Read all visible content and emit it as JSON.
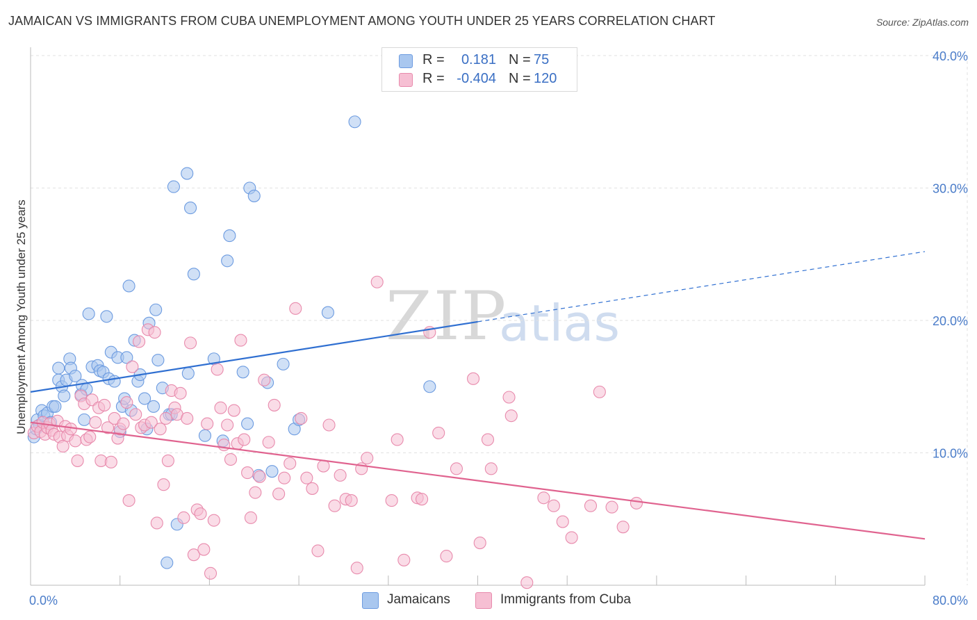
{
  "title": "JAMAICAN VS IMMIGRANTS FROM CUBA UNEMPLOYMENT AMONG YOUTH UNDER 25 YEARS CORRELATION CHART",
  "source": "Source: ZipAtlas.com",
  "watermark": {
    "zip": "ZIP",
    "atlas": "atlas"
  },
  "legend": {
    "rows": [
      {
        "r_label": "R =",
        "r_value": "0.181",
        "n_label": "N =",
        "n_value": "75",
        "color": "#a9c7ef",
        "border": "#6c9be0"
      },
      {
        "r_label": "R =",
        "r_value": "-0.404",
        "n_label": "N =",
        "n_value": "120",
        "color": "#f6bfd3",
        "border": "#e88aac"
      }
    ]
  },
  "bottom_legend": [
    {
      "label": "Jamaicans",
      "color": "#a9c7ef",
      "border": "#6c9be0"
    },
    {
      "label": "Immigrants from Cuba",
      "color": "#f6bfd3",
      "border": "#e88aac"
    }
  ],
  "chart_data": {
    "type": "scatter",
    "title": "JAMAICAN VS IMMIGRANTS FROM CUBA UNEMPLOYMENT AMONG YOUTH UNDER 25 YEARS CORRELATION CHART",
    "xlabel": "",
    "ylabel": "Unemployment Among Youth under 25 years",
    "xlim": [
      0,
      80
    ],
    "ylim": [
      0,
      40
    ],
    "x_ticks": [
      {
        "value": 0,
        "label": "0.0%"
      },
      {
        "value": 80,
        "label": "80.0%"
      }
    ],
    "y_ticks": [
      {
        "value": 10,
        "label": "10.0%"
      },
      {
        "value": 20,
        "label": "20.0%"
      },
      {
        "value": 30,
        "label": "30.0%"
      },
      {
        "value": 40,
        "label": "40.0%"
      }
    ],
    "grid": true,
    "series": [
      {
        "name": "Jamaicans",
        "color": "#6c9be0",
        "fill": "#a9c7ef",
        "trend_color": "#2f6fd1",
        "trend": {
          "x0": 0,
          "y0": 14.6,
          "x1": 40,
          "y1": 19.9,
          "dashed_to_x": 80,
          "dashed_to_y": 25.2
        },
        "points": [
          [
            0.3,
            11.2
          ],
          [
            0.5,
            11.8
          ],
          [
            0.6,
            12.5
          ],
          [
            0.8,
            12.1
          ],
          [
            1.0,
            13.2
          ],
          [
            1.2,
            12.8
          ],
          [
            1.5,
            13.0
          ],
          [
            1.8,
            12.3
          ],
          [
            2.0,
            13.5
          ],
          [
            2.2,
            13.5
          ],
          [
            2.5,
            15.5
          ],
          [
            2.5,
            16.4
          ],
          [
            2.8,
            15.0
          ],
          [
            3.0,
            14.3
          ],
          [
            3.2,
            15.5
          ],
          [
            3.5,
            17.1
          ],
          [
            3.6,
            16.4
          ],
          [
            4.0,
            15.8
          ],
          [
            4.5,
            14.4
          ],
          [
            4.6,
            15.1
          ],
          [
            4.8,
            12.5
          ],
          [
            5.0,
            14.8
          ],
          [
            5.2,
            20.5
          ],
          [
            5.5,
            16.5
          ],
          [
            6.0,
            16.6
          ],
          [
            6.2,
            16.2
          ],
          [
            6.5,
            16.1
          ],
          [
            6.8,
            20.3
          ],
          [
            7.0,
            15.6
          ],
          [
            7.2,
            17.6
          ],
          [
            7.5,
            15.4
          ],
          [
            7.8,
            17.2
          ],
          [
            8.0,
            11.6
          ],
          [
            8.2,
            13.5
          ],
          [
            8.4,
            14.1
          ],
          [
            8.6,
            17.2
          ],
          [
            8.8,
            22.6
          ],
          [
            9.0,
            13.2
          ],
          [
            9.3,
            18.5
          ],
          [
            9.6,
            15.4
          ],
          [
            9.8,
            15.9
          ],
          [
            10.2,
            14.1
          ],
          [
            10.4,
            11.8
          ],
          [
            10.6,
            19.8
          ],
          [
            11.0,
            13.5
          ],
          [
            11.2,
            20.8
          ],
          [
            11.4,
            17.0
          ],
          [
            11.8,
            14.9
          ],
          [
            12.2,
            1.7
          ],
          [
            12.4,
            12.9
          ],
          [
            12.6,
            12.9
          ],
          [
            12.8,
            30.1
          ],
          [
            13.1,
            4.6
          ],
          [
            14.0,
            31.1
          ],
          [
            14.1,
            16.0
          ],
          [
            14.3,
            28.5
          ],
          [
            14.6,
            23.5
          ],
          [
            15.6,
            11.3
          ],
          [
            16.4,
            17.1
          ],
          [
            17.2,
            10.9
          ],
          [
            17.6,
            24.5
          ],
          [
            17.8,
            26.4
          ],
          [
            19.0,
            16.1
          ],
          [
            19.4,
            12.2
          ],
          [
            19.6,
            30.0
          ],
          [
            20.0,
            29.4
          ],
          [
            20.4,
            8.3
          ],
          [
            21.2,
            15.3
          ],
          [
            21.6,
            8.6
          ],
          [
            22.6,
            16.7
          ],
          [
            23.6,
            11.8
          ],
          [
            24.0,
            12.5
          ],
          [
            26.6,
            20.6
          ],
          [
            29.0,
            35.0
          ],
          [
            35.7,
            15.0
          ]
        ]
      },
      {
        "name": "Immigrants from Cuba",
        "color": "#e88aac",
        "fill": "#f6bfd3",
        "trend_color": "#e0638f",
        "trend": {
          "x0": 0,
          "y0": 12.3,
          "x1": 80,
          "y1": 3.5
        },
        "points": [
          [
            0.3,
            11.5
          ],
          [
            0.6,
            12.0
          ],
          [
            0.9,
            11.6
          ],
          [
            1.1,
            12.3
          ],
          [
            1.3,
            11.4
          ],
          [
            1.5,
            11.9
          ],
          [
            1.7,
            12.2
          ],
          [
            1.9,
            11.7
          ],
          [
            2.1,
            11.4
          ],
          [
            2.4,
            12.4
          ],
          [
            2.6,
            11.2
          ],
          [
            2.9,
            10.5
          ],
          [
            3.1,
            12.0
          ],
          [
            3.3,
            11.3
          ],
          [
            3.6,
            11.8
          ],
          [
            4.0,
            10.9
          ],
          [
            4.2,
            9.4
          ],
          [
            4.5,
            14.3
          ],
          [
            4.8,
            13.7
          ],
          [
            5.0,
            11.0
          ],
          [
            5.3,
            11.2
          ],
          [
            5.5,
            14.0
          ],
          [
            5.8,
            12.3
          ],
          [
            6.1,
            13.4
          ],
          [
            6.3,
            9.4
          ],
          [
            6.6,
            13.6
          ],
          [
            6.9,
            11.9
          ],
          [
            7.2,
            9.3
          ],
          [
            7.5,
            12.6
          ],
          [
            7.8,
            11.1
          ],
          [
            8.0,
            11.8
          ],
          [
            8.3,
            12.2
          ],
          [
            8.6,
            13.8
          ],
          [
            8.8,
            6.4
          ],
          [
            9.1,
            16.5
          ],
          [
            9.4,
            12.9
          ],
          [
            9.7,
            18.4
          ],
          [
            9.9,
            11.9
          ],
          [
            10.2,
            12.1
          ],
          [
            10.5,
            19.3
          ],
          [
            10.8,
            12.3
          ],
          [
            11.1,
            19.1
          ],
          [
            11.3,
            4.7
          ],
          [
            11.6,
            11.8
          ],
          [
            11.9,
            7.6
          ],
          [
            12.1,
            12.6
          ],
          [
            12.3,
            9.4
          ],
          [
            12.6,
            14.7
          ],
          [
            12.9,
            13.4
          ],
          [
            13.1,
            12.9
          ],
          [
            13.4,
            14.5
          ],
          [
            13.7,
            5.1
          ],
          [
            14.0,
            12.6
          ],
          [
            14.3,
            18.3
          ],
          [
            14.6,
            2.3
          ],
          [
            14.9,
            5.7
          ],
          [
            15.2,
            5.4
          ],
          [
            15.5,
            2.7
          ],
          [
            15.8,
            12.2
          ],
          [
            16.1,
            0.9
          ],
          [
            16.4,
            4.9
          ],
          [
            16.7,
            16.3
          ],
          [
            17.0,
            13.4
          ],
          [
            17.3,
            10.6
          ],
          [
            17.6,
            12.1
          ],
          [
            17.9,
            9.5
          ],
          [
            18.2,
            13.2
          ],
          [
            18.5,
            10.7
          ],
          [
            18.8,
            18.5
          ],
          [
            19.1,
            11.0
          ],
          [
            19.4,
            8.5
          ],
          [
            19.7,
            5.1
          ],
          [
            20.1,
            7.0
          ],
          [
            20.5,
            8.2
          ],
          [
            20.9,
            15.5
          ],
          [
            21.3,
            10.8
          ],
          [
            21.8,
            13.6
          ],
          [
            22.2,
            6.9
          ],
          [
            22.7,
            8.1
          ],
          [
            23.2,
            9.2
          ],
          [
            23.7,
            20.9
          ],
          [
            24.2,
            12.6
          ],
          [
            24.7,
            8.1
          ],
          [
            25.2,
            7.3
          ],
          [
            25.7,
            2.6
          ],
          [
            26.2,
            9.0
          ],
          [
            26.7,
            12.1
          ],
          [
            27.2,
            6.0
          ],
          [
            27.7,
            8.3
          ],
          [
            28.2,
            6.5
          ],
          [
            28.7,
            6.4
          ],
          [
            29.2,
            1.3
          ],
          [
            29.6,
            8.8
          ],
          [
            30.1,
            9.6
          ],
          [
            31.0,
            22.9
          ],
          [
            32.3,
            6.4
          ],
          [
            32.8,
            11.0
          ],
          [
            33.4,
            1.9
          ],
          [
            34.6,
            6.6
          ],
          [
            35.0,
            6.5
          ],
          [
            35.7,
            19.1
          ],
          [
            36.5,
            11.5
          ],
          [
            37.2,
            2.2
          ],
          [
            38.1,
            8.8
          ],
          [
            39.6,
            15.6
          ],
          [
            40.2,
            3.2
          ],
          [
            40.9,
            11.0
          ],
          [
            41.2,
            8.8
          ],
          [
            42.8,
            14.2
          ],
          [
            43.0,
            12.8
          ],
          [
            44.4,
            0.2
          ],
          [
            45.9,
            6.6
          ],
          [
            46.8,
            6.0
          ],
          [
            47.6,
            4.8
          ],
          [
            48.4,
            3.6
          ],
          [
            50.1,
            6.0
          ],
          [
            50.9,
            14.6
          ],
          [
            52.0,
            5.9
          ],
          [
            53.0,
            4.4
          ],
          [
            54.2,
            6.2
          ]
        ]
      }
    ]
  }
}
